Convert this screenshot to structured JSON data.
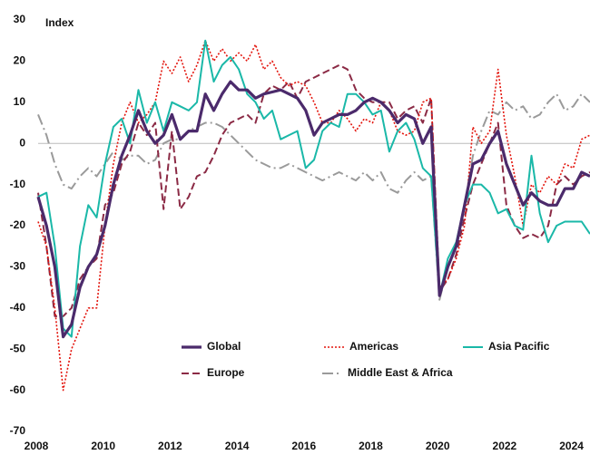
{
  "chart_data": {
    "type": "line",
    "y_label": "Index",
    "x": [
      2008,
      2008.25,
      2008.5,
      2008.75,
      2009,
      2009.25,
      2009.5,
      2009.75,
      2010,
      2010.25,
      2010.5,
      2010.75,
      2011,
      2011.25,
      2011.5,
      2011.75,
      2012,
      2012.25,
      2012.5,
      2012.75,
      2013,
      2013.25,
      2013.5,
      2013.75,
      2014,
      2014.25,
      2014.5,
      2014.75,
      2015,
      2015.25,
      2015.5,
      2015.75,
      2016,
      2016.25,
      2016.5,
      2016.75,
      2017,
      2017.25,
      2017.5,
      2017.75,
      2018,
      2018.25,
      2018.5,
      2018.75,
      2019,
      2019.25,
      2019.5,
      2019.75,
      2020,
      2020.25,
      2020.5,
      2020.75,
      2021,
      2021.25,
      2021.5,
      2021.75,
      2022,
      2022.25,
      2022.5,
      2022.75,
      2023,
      2023.25,
      2023.5,
      2023.75,
      2024,
      2024.25,
      2024.5
    ],
    "series": [
      {
        "name": "Global",
        "color": "#4b2a6b",
        "line_style": "solid",
        "values": [
          -13,
          -20,
          -30,
          -47,
          -44,
          -35,
          -30,
          -27,
          -20,
          -10,
          -3,
          2,
          8,
          3,
          0,
          2,
          7,
          1,
          3,
          3,
          12,
          8,
          12,
          15,
          13,
          13,
          11,
          12,
          12.5,
          13,
          12,
          11,
          8,
          2,
          5,
          6,
          7,
          7,
          8,
          10,
          11,
          10,
          8,
          5,
          7,
          6,
          0,
          4,
          -37,
          -30,
          -25,
          -15,
          -5,
          -4,
          0,
          3,
          -5,
          -10,
          -15,
          -12,
          -14,
          -15,
          -15,
          -11,
          -11,
          -7,
          -8
        ]
      },
      {
        "name": "Americas",
        "color": "#e3140c",
        "line_style": "dotted",
        "values": [
          -19,
          -25,
          -40,
          -60,
          -50,
          -45,
          -40,
          -40,
          -20,
          -5,
          5,
          10,
          5,
          7,
          10,
          20,
          17,
          21,
          15,
          19,
          25,
          20,
          23,
          20,
          22,
          20,
          24,
          18,
          20,
          16,
          14,
          15,
          14,
          10,
          5,
          5,
          8,
          6,
          3,
          6,
          5,
          10,
          8,
          3,
          2,
          3,
          10,
          11,
          -35,
          -33,
          -28,
          -20,
          4,
          0,
          3,
          18,
          2,
          -8,
          -20,
          -10,
          -12,
          -8,
          -10,
          -5,
          -6,
          1,
          2
        ]
      },
      {
        "name": "Asia Pacific",
        "color": "#1ab8a8",
        "line_style": "solid",
        "values": [
          -13,
          -12,
          -25,
          -45,
          -47,
          -25,
          -15,
          -18,
          -5,
          4,
          6,
          0,
          13,
          5,
          10,
          3,
          10,
          9,
          8,
          10,
          25,
          15,
          19,
          21,
          18,
          12,
          10,
          6,
          8,
          1,
          2,
          3,
          -6,
          -4,
          3,
          5,
          4,
          12,
          12,
          10,
          7,
          8,
          -2,
          3,
          5,
          1,
          -6,
          -8,
          -37,
          -28,
          -24,
          -15,
          -10,
          -10,
          -12,
          -17,
          -16,
          -20,
          -21,
          -3,
          -17,
          -24,
          -20,
          -19,
          -19,
          -19,
          -22
        ]
      },
      {
        "name": "Europe",
        "color": "#8b2a45",
        "line_style": "dashed",
        "values": [
          -12,
          -25,
          -42,
          -42,
          -40,
          -33,
          -30,
          -28,
          -15,
          -12,
          -5,
          -2,
          5,
          2,
          5,
          -16,
          3,
          -16,
          -13,
          -8,
          -7,
          -3,
          2,
          5,
          6,
          7,
          5,
          12,
          14,
          13,
          15,
          11,
          15,
          16,
          17,
          18,
          19,
          18,
          13,
          11,
          10,
          10,
          10,
          6,
          8,
          9,
          5,
          11,
          -36,
          -33,
          -27,
          -18,
          -10,
          -5,
          0,
          5,
          -15,
          -20,
          -23,
          -22,
          -23,
          -20,
          -10,
          -8,
          -10,
          -8,
          -7
        ]
      },
      {
        "name": "Middle East & Africa",
        "color": "#9a9a9a",
        "line_style": "dashdot",
        "values": [
          7,
          2,
          -5,
          -10,
          -11,
          -8,
          -6,
          -8,
          -5,
          -2,
          -4,
          -3,
          -3,
          -5,
          -4,
          0,
          1,
          1,
          3,
          4,
          5,
          5,
          4,
          2,
          0,
          -2,
          -4,
          -5,
          -6,
          -6,
          -5,
          -6,
          -7,
          -8,
          -9,
          -8,
          -7,
          -8,
          -9,
          -7,
          -9,
          -7,
          -11,
          -12,
          -9,
          -7,
          -9,
          -8,
          -38,
          -30,
          -25,
          -15,
          -3,
          3,
          8,
          7,
          10,
          8,
          9,
          6,
          7,
          10,
          12,
          8,
          9,
          12,
          10
        ]
      }
    ],
    "xlim": [
      2008,
      2024.5
    ],
    "xticks": [
      2008,
      2010,
      2012,
      2014,
      2016,
      2018,
      2020,
      2022,
      2024
    ],
    "ylim": [
      -70,
      30
    ],
    "yticks": [
      -70,
      -60,
      -50,
      -40,
      -30,
      -20,
      -10,
      0,
      10,
      20,
      30
    ],
    "zero_line": true,
    "legend": "bottom"
  }
}
